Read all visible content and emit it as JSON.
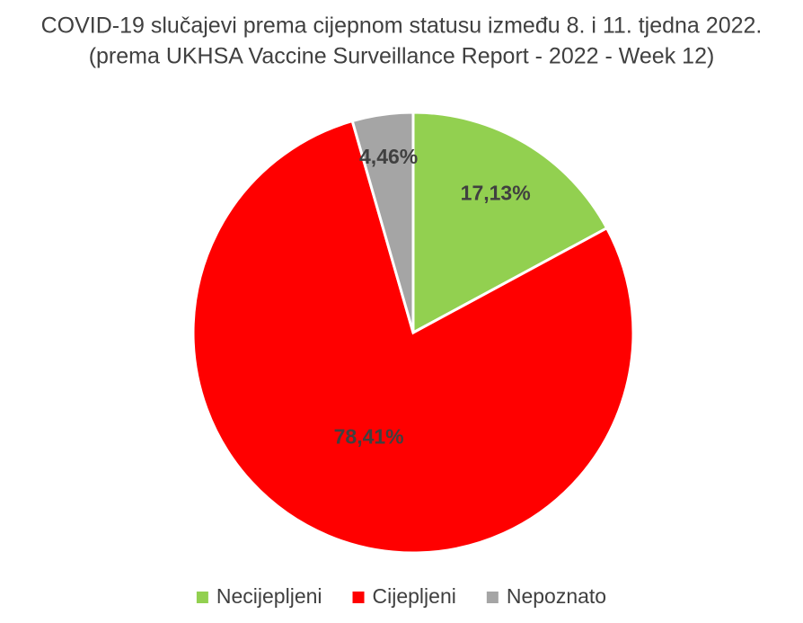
{
  "chart_data": {
    "type": "pie",
    "title": "COVID-19 slučajevi prema cijepnom statusu između 8. i 11. tjedna 2022.",
    "subtitle": "(prema UKHSA Vaccine Surveillance Report - 2022 - Week 12)",
    "categories": [
      "Necijepljeni",
      "Cijepljeni",
      "Nepoznato"
    ],
    "values": [
      17.13,
      78.41,
      4.46
    ],
    "value_labels": [
      "17,13%",
      "78,41%",
      "4,46%"
    ],
    "colors": [
      "#92d050",
      "#ff0000",
      "#a5a5a5"
    ],
    "legend": "bottom"
  }
}
